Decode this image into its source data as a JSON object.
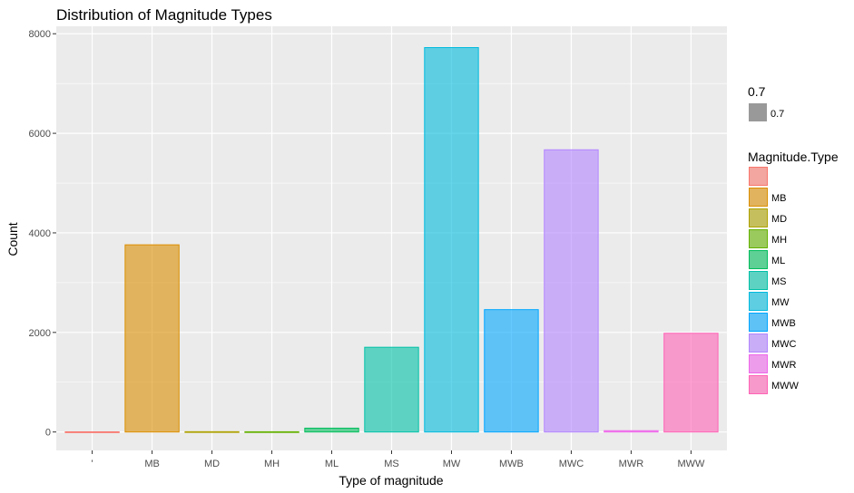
{
  "chart_data": {
    "type": "bar",
    "title": "Distribution of Magnitude Types",
    "xlabel": "Type of magnitude",
    "ylabel": "Count",
    "categories": [
      "",
      "MB",
      "MD",
      "MH",
      "ML",
      "MS",
      "MW",
      "MWB",
      "MWC",
      "MWR",
      "MWW"
    ],
    "x_tick_labels": [
      "'",
      "MB",
      "MD",
      "MH",
      "ML",
      "MS",
      "MW",
      "MWB",
      "MWC",
      "MWR",
      "MWW"
    ],
    "values": [
      3,
      3760,
      6,
      5,
      77,
      1702,
      7722,
      2458,
      5669,
      26,
      1983
    ],
    "ylim": [
      -370,
      8150
    ],
    "y_ticks": [
      0,
      2000,
      4000,
      6000,
      8000
    ],
    "y_tick_labels": [
      "0",
      "2000",
      "4000",
      "6000",
      "8000"
    ],
    "colors": [
      "#F8766D",
      "#DB8E00",
      "#AEA200",
      "#64B200",
      "#00BD5C",
      "#00C1A7",
      "#00BADE",
      "#00A6FF",
      "#B385FF",
      "#EF67EB",
      "#FF63B6"
    ],
    "fill_alpha": 0.6,
    "grid": true,
    "background": "#EBEBEB",
    "legend_position": "right",
    "legends": [
      {
        "title": "0.7",
        "entries": [
          {
            "label": "0.7",
            "color": "#999999"
          }
        ]
      },
      {
        "title": "Magnitude.Type",
        "entries": [
          {
            "label": "",
            "color": "#F8766D"
          },
          {
            "label": "MB",
            "color": "#DB8E00"
          },
          {
            "label": "MD",
            "color": "#AEA200"
          },
          {
            "label": "MH",
            "color": "#64B200"
          },
          {
            "label": "ML",
            "color": "#00BD5C"
          },
          {
            "label": "MS",
            "color": "#00C1A7"
          },
          {
            "label": "MW",
            "color": "#00BADE"
          },
          {
            "label": "MWB",
            "color": "#00A6FF"
          },
          {
            "label": "MWC",
            "color": "#B385FF"
          },
          {
            "label": "MWR",
            "color": "#EF67EB"
          },
          {
            "label": "MWW",
            "color": "#FF63B6"
          }
        ]
      }
    ]
  }
}
